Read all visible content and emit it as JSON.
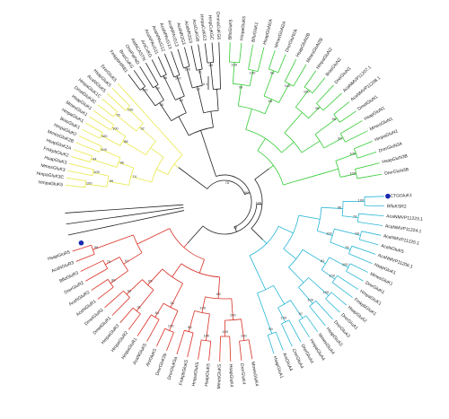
{
  "clades": {
    "black": {
      "color": "#222222",
      "leaves": [
        "FmkpbHIRB1",
        "BrasCuKG",
        "OnePaPaD",
        "AtaNCASTN",
        "ArsCuKG",
        "AcaNPAcG11",
        "AcaNPAcG12",
        "AcaNPAcG13",
        "AcaNPAcG13",
        "AcaNR2G3",
        "AcaNR2G3",
        "AcaCuKGB",
        "HmpaCuKG3",
        "HmpCuKGC",
        "OmmaCuKG6"
      ],
      "bootstrap": [
        "100",
        "98",
        "66",
        "100",
        "100",
        "71",
        "89",
        "76",
        "62",
        "92"
      ]
    },
    "yellow": {
      "color": "#e8e84a",
      "leaves": [
        "HmpaGluK5",
        "HmpaGluK3C",
        "MmesGluK3",
        "HsapGluK3",
        "FmkpbGluK2",
        "HsapGluK2A",
        "MmesGluK2B",
        "HmpaGluK2",
        "BrasGluK1",
        "HmpaGluK1",
        "MmesGluK1",
        "HsapGluK1",
        "DmelGluK3C",
        "HmpaGluK1C",
        "AcaNGluK5",
        "HsapGluK5",
        "DrerGluK5"
      ],
      "bootstrap": [
        "100",
        "100",
        "94",
        "100",
        "100",
        "100",
        "76",
        "100",
        "99",
        "96",
        "88",
        "92",
        "74"
      ]
    },
    "red": {
      "color": "#d93025",
      "leaves": [
        "MmesGluK4",
        "DrerGluK4",
        "HsapGluK4",
        "MmesGluK5",
        "HsapGluK5",
        "HmpaGluK5",
        "FmkpbGluK5",
        "DrerGluK5a",
        "DrerGluK5b",
        "ArsGluK5",
        "AcaNGluK5",
        "HmpaGluR1",
        "HmpaGluR2",
        "HmpaGluR3",
        "DmelGluR1",
        "DmelGluR2",
        "AcaNGluR1",
        "AcaNGluR2",
        "DrerGluR2",
        "BfloGluR3",
        "AcaNGluR3",
        "HsapGluR5"
      ],
      "bootstrap": [
        "100",
        "100",
        "100",
        "99",
        "100",
        "84",
        "91",
        "93",
        "89",
        "75",
        "98",
        "100",
        "100",
        "91",
        "65",
        "91",
        "65"
      ]
    },
    "cyan": {
      "color": "#29b6d6",
      "leaves": [
        "CCTGGluK1",
        "BfluKSR2",
        "AcaNMVP11223.1",
        "AcaNMVP11224.1",
        "AcaNMVP11225.1",
        "AcaNGluK5",
        "AcaNMVP11206.1",
        "HsapGluK1",
        "MmesGluK1",
        "DrerGluK1",
        "HmpaGluK1",
        "FmkpbGluK1",
        "HsapGluA2",
        "DrerGluA1",
        "DrerGluA3",
        "HsapGluA3",
        "MmesGluA4",
        "HmpaGluA4",
        "DrerGluA4",
        "CrerGluA4",
        "ArsGluA4",
        "HsapGluA1"
      ],
      "bootstrap": [
        "100",
        "74",
        "99",
        "76",
        "100",
        "100",
        "100",
        "100",
        "97",
        "100",
        "99",
        "96",
        "100",
        "81"
      ],
      "marker_color": "#1a2bb0"
    },
    "green": {
      "color": "#33cc33",
      "leaves": [
        "BfloGluK5",
        "HmpaGluK5",
        "BfluGluK1",
        "HsapGluN2A",
        "MmesGluN2A",
        "DrerGluN2A",
        "HsapGluN2B",
        "MmesGluN2B",
        "HmpaGluN2",
        "BrasGluN2",
        "DrerGluN1",
        "AcaNMVP11207.1",
        "AcaNMVP11208.1",
        "DmelGluN1",
        "HsapGluN1",
        "MmesGluN1",
        "HmpaGluN1",
        "DrerGluN3A",
        "HsapGluN3B",
        "DrerGluN3B"
      ],
      "bootstrap": [
        "100",
        "100",
        "99",
        "100",
        "100",
        "95",
        "95",
        "93",
        "100",
        "100",
        "99",
        "98"
      ]
    }
  },
  "spine_bootstrap": [
    "100",
    "98",
    "99",
    "76",
    "83",
    "100",
    "95"
  ],
  "root_markers": [
    {
      "name": "AcaNMVP11185.1",
      "color": "#1a2bb0"
    }
  ],
  "scale_bar": {
    "label": "0.1"
  }
}
